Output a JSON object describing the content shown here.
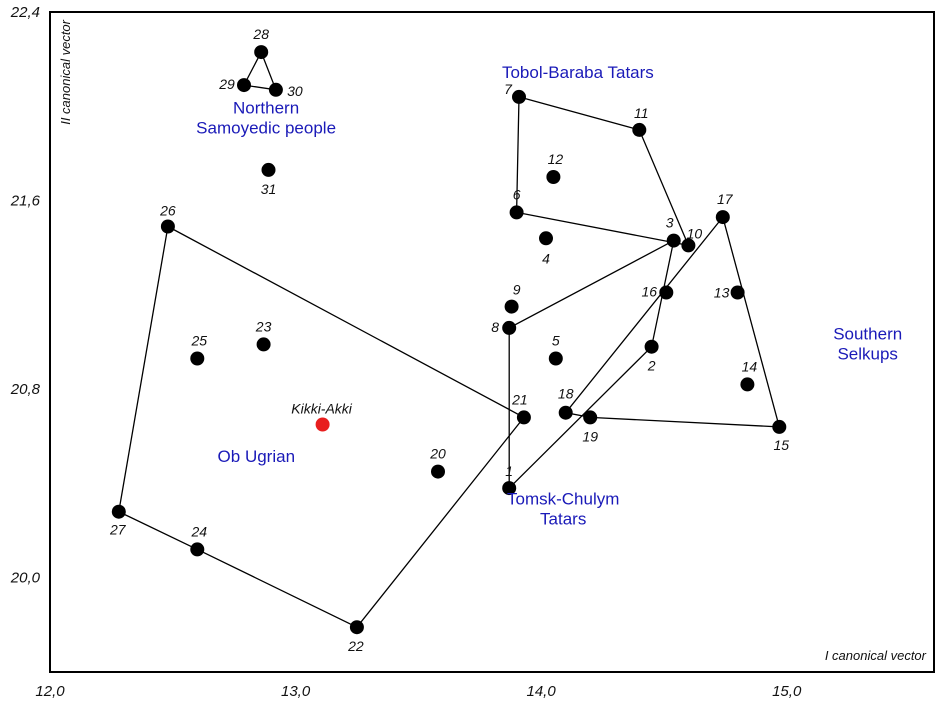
{
  "chart_data": {
    "type": "scatter",
    "xlabel": "I canonical vector",
    "ylabel": "II canonical vector",
    "xlim": [
      12.0,
      15.6
    ],
    "ylim": [
      19.6,
      22.4
    ],
    "x_ticks": [
      "12,0",
      "13,0",
      "14,0",
      "15,0"
    ],
    "y_ticks": [
      "20,0",
      "20,8",
      "21,6",
      "22,4"
    ],
    "grid": false,
    "points": [
      {
        "id": "1",
        "label": "1",
        "x": 13.87,
        "y": 20.38
      },
      {
        "id": "2",
        "label": "2",
        "x": 14.45,
        "y": 20.98
      },
      {
        "id": "3",
        "label": "3",
        "x": 14.54,
        "y": 21.43
      },
      {
        "id": "4",
        "label": "4",
        "x": 14.02,
        "y": 21.44
      },
      {
        "id": "5",
        "label": "5",
        "x": 14.06,
        "y": 20.93
      },
      {
        "id": "6",
        "label": "6",
        "x": 13.9,
        "y": 21.55
      },
      {
        "id": "7",
        "label": "7",
        "x": 13.91,
        "y": 22.04
      },
      {
        "id": "8",
        "label": "8",
        "x": 13.87,
        "y": 21.06
      },
      {
        "id": "9",
        "label": "9",
        "x": 13.88,
        "y": 21.15
      },
      {
        "id": "10",
        "label": "10",
        "x": 14.6,
        "y": 21.41
      },
      {
        "id": "11",
        "label": "11",
        "x": 14.4,
        "y": 21.9
      },
      {
        "id": "12",
        "label": "12",
        "x": 14.05,
        "y": 21.7
      },
      {
        "id": "13",
        "label": "13",
        "x": 14.8,
        "y": 21.21
      },
      {
        "id": "14",
        "label": "14",
        "x": 14.84,
        "y": 20.82
      },
      {
        "id": "15",
        "label": "15",
        "x": 14.97,
        "y": 20.64
      },
      {
        "id": "16",
        "label": "16",
        "x": 14.51,
        "y": 21.21
      },
      {
        "id": "17",
        "label": "17",
        "x": 14.74,
        "y": 21.53
      },
      {
        "id": "18",
        "label": "18",
        "x": 14.1,
        "y": 20.7
      },
      {
        "id": "19",
        "label": "19",
        "x": 14.2,
        "y": 20.68
      },
      {
        "id": "20",
        "label": "20",
        "x": 13.58,
        "y": 20.45
      },
      {
        "id": "21",
        "label": "21",
        "x": 13.93,
        "y": 20.68
      },
      {
        "id": "22",
        "label": "22",
        "x": 13.25,
        "y": 19.79
      },
      {
        "id": "23",
        "label": "23",
        "x": 12.87,
        "y": 20.99
      },
      {
        "id": "24",
        "label": "24",
        "x": 12.6,
        "y": 20.12
      },
      {
        "id": "25",
        "label": "25",
        "x": 12.6,
        "y": 20.93
      },
      {
        "id": "26",
        "label": "26",
        "x": 12.48,
        "y": 21.49
      },
      {
        "id": "27",
        "label": "27",
        "x": 12.28,
        "y": 20.28
      },
      {
        "id": "28",
        "label": "28",
        "x": 12.86,
        "y": 22.23
      },
      {
        "id": "29",
        "label": "29",
        "x": 12.79,
        "y": 22.09
      },
      {
        "id": "30",
        "label": "30",
        "x": 12.92,
        "y": 22.07
      },
      {
        "id": "31",
        "label": "31",
        "x": 12.89,
        "y": 21.73
      },
      {
        "id": "kikki",
        "label": "Kikki-Akki",
        "x": 13.11,
        "y": 20.65,
        "highlight": true
      }
    ],
    "groups": [
      {
        "name": "Tobol-Baraba Tatars",
        "polygon": [
          "7",
          "11",
          "10",
          "6",
          "7"
        ]
      },
      {
        "name": "Tomsk-Chulym Tatars",
        "polygon": [
          "1",
          "8",
          "3",
          "2",
          "1"
        ]
      },
      {
        "name": "Southern Selkups",
        "polygon": [
          "17",
          "15",
          "19",
          "18",
          "17"
        ]
      },
      {
        "name": "Ob Ugrian",
        "polygon": [
          "26",
          "21",
          "22",
          "24",
          "27",
          "26"
        ]
      },
      {
        "name": "Northern Samoyedic people",
        "polygon": [
          "28",
          "30",
          "29",
          "28"
        ]
      }
    ],
    "group_labels": [
      {
        "lines": [
          "Tobol-Baraba Tatars"
        ],
        "x": 14.15,
        "y": 22.12
      },
      {
        "lines": [
          "Northern",
          "Samoyedic people"
        ],
        "x": 12.88,
        "y": 21.97
      },
      {
        "lines": [
          "Southern",
          "Selkups"
        ],
        "x": 15.33,
        "y": 21.01
      },
      {
        "lines": [
          "Ob Ugrian"
        ],
        "x": 12.84,
        "y": 20.49
      },
      {
        "lines": [
          "Tomsk-Chulym",
          "Tatars"
        ],
        "x": 14.09,
        "y": 20.31
      }
    ]
  },
  "colors": {
    "points": "#000000",
    "lines": "#000000",
    "group_labels": "#1a1ab8",
    "highlight": "#e81e1e"
  }
}
